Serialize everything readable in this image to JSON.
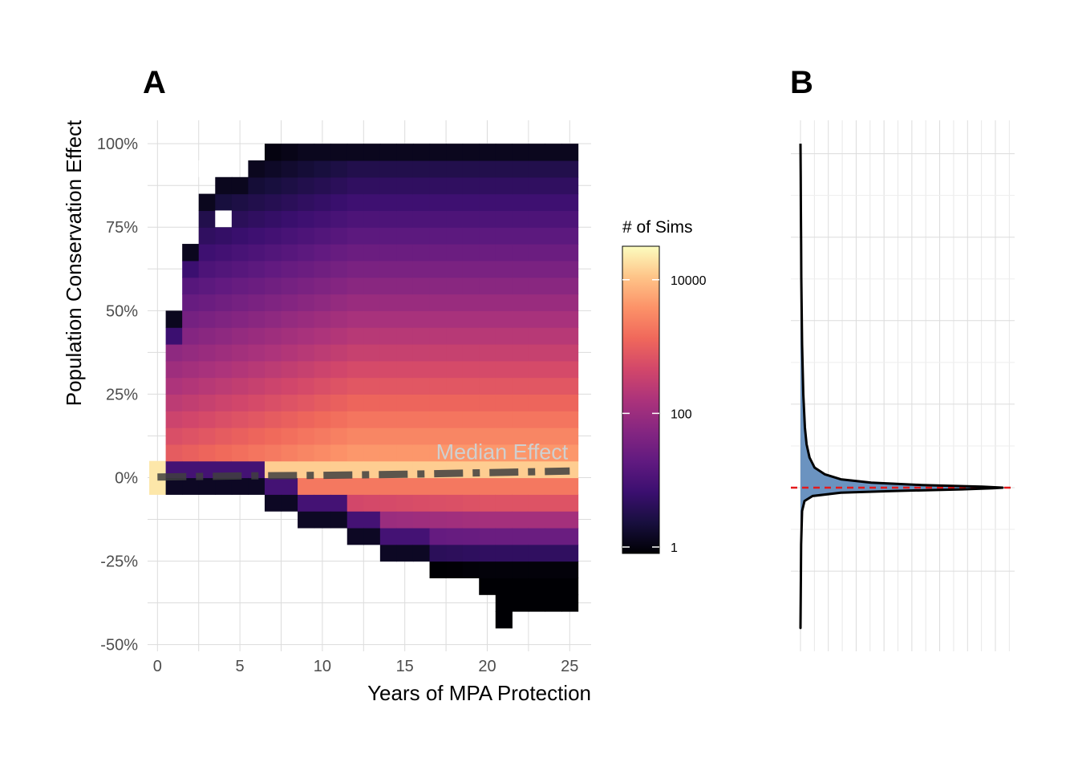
{
  "panels": {
    "a": {
      "label": "A"
    },
    "b": {
      "label": "B"
    }
  },
  "chart_data": [
    {
      "type": "heatmap",
      "panel": "A",
      "xlabel": "Years of MPA Protection",
      "ylabel": "Population Conservation Effect",
      "x_ticks": [
        0,
        5,
        10,
        15,
        20,
        25
      ],
      "x_tick_labels": [
        "0",
        "5",
        "10",
        "15",
        "20",
        "25"
      ],
      "y_ticks": [
        -0.5,
        -0.25,
        0,
        0.25,
        0.5,
        0.75,
        1.0
      ],
      "y_tick_labels": [
        "-50%",
        "-25%",
        "0%",
        "25%",
        "50%",
        "75%",
        "100%"
      ],
      "xlim": [
        -0.6,
        26.3
      ],
      "ylim": [
        -0.52,
        1.07
      ],
      "bin": {
        "x_width": 1,
        "y_height": 0.05
      },
      "annotation": "Median Effect",
      "median_line": {
        "style": "dashed",
        "color": "#404040",
        "points": [
          [
            0,
            0.002
          ],
          [
            5,
            0.005
          ],
          [
            10,
            0.007
          ],
          [
            15,
            0.01
          ],
          [
            20,
            0.015
          ],
          [
            25,
            0.02
          ]
        ]
      },
      "legend": {
        "title": "# of Sims",
        "scale": "log10",
        "placement": "right",
        "range": [
          1,
          30000
        ],
        "ticks": [
          1,
          100,
          10000
        ],
        "tick_labels": [
          "1",
          "100",
          "10000"
        ],
        "palette": "magma"
      },
      "column_extents": [
        {
          "x": 0,
          "ymin": -0.05,
          "ymax": 0.05
        },
        {
          "x": 1,
          "ymin": -0.05,
          "ymax": 0.5
        },
        {
          "x": 2,
          "ymin": -0.05,
          "ymax": 0.7
        },
        {
          "x": 3,
          "ymin": -0.05,
          "ymax": 0.85
        },
        {
          "x": 4,
          "ymin": -0.05,
          "ymax": 0.9
        },
        {
          "x": 5,
          "ymin": -0.05,
          "ymax": 0.9
        },
        {
          "x": 6,
          "ymin": -0.05,
          "ymax": 0.95
        },
        {
          "x": 7,
          "ymin": -0.1,
          "ymax": 1.0
        },
        {
          "x": 8,
          "ymin": -0.1,
          "ymax": 1.0
        },
        {
          "x": 9,
          "ymin": -0.15,
          "ymax": 1.0
        },
        {
          "x": 10,
          "ymin": -0.15,
          "ymax": 1.0
        },
        {
          "x": 11,
          "ymin": -0.15,
          "ymax": 1.0
        },
        {
          "x": 12,
          "ymin": -0.2,
          "ymax": 1.0
        },
        {
          "x": 13,
          "ymin": -0.2,
          "ymax": 1.0
        },
        {
          "x": 14,
          "ymin": -0.25,
          "ymax": 1.0
        },
        {
          "x": 15,
          "ymin": -0.25,
          "ymax": 1.0
        },
        {
          "x": 16,
          "ymin": -0.25,
          "ymax": 1.0
        },
        {
          "x": 17,
          "ymin": -0.3,
          "ymax": 1.0
        },
        {
          "x": 18,
          "ymin": -0.3,
          "ymax": 1.0
        },
        {
          "x": 19,
          "ymin": -0.3,
          "ymax": 1.0
        },
        {
          "x": 20,
          "ymin": -0.35,
          "ymax": 1.0
        },
        {
          "x": 21,
          "ymin": -0.45,
          "ymax": 1.0
        },
        {
          "x": 22,
          "ymin": -0.4,
          "ymax": 1.0
        },
        {
          "x": 23,
          "ymin": -0.4,
          "ymax": 1.0
        },
        {
          "x": 24,
          "ymin": -0.4,
          "ymax": 1.0
        },
        {
          "x": 25,
          "ymin": -0.4,
          "ymax": 1.0
        }
      ]
    },
    {
      "type": "area",
      "panel": "B",
      "description_of_values": "density of population conservation effect, shared y-axis with panel A",
      "ylim": [
        -0.52,
        1.07
      ],
      "x_ticks_count": 8,
      "fill_color": "#6b93c0",
      "line_color": "#000000",
      "median_line": {
        "y": -0.03,
        "color": "#e41a1c",
        "style": "dashed"
      },
      "density_points": [
        [
          -0.45,
          0.0
        ],
        [
          -0.3,
          0.002
        ],
        [
          -0.2,
          0.003
        ],
        [
          -0.1,
          0.008
        ],
        [
          -0.07,
          0.02
        ],
        [
          -0.055,
          0.06
        ],
        [
          -0.045,
          0.2
        ],
        [
          -0.04,
          0.45
        ],
        [
          -0.035,
          0.8
        ],
        [
          -0.032,
          0.95
        ],
        [
          -0.03,
          1.0
        ],
        [
          -0.027,
          0.9
        ],
        [
          -0.022,
          0.6
        ],
        [
          -0.015,
          0.35
        ],
        [
          -0.005,
          0.2
        ],
        [
          0.01,
          0.12
        ],
        [
          0.03,
          0.07
        ],
        [
          0.06,
          0.045
        ],
        [
          0.1,
          0.03
        ],
        [
          0.15,
          0.022
        ],
        [
          0.2,
          0.018
        ],
        [
          0.25,
          0.014
        ],
        [
          0.3,
          0.012
        ],
        [
          0.4,
          0.008
        ],
        [
          0.5,
          0.006
        ],
        [
          0.6,
          0.004
        ],
        [
          0.7,
          0.003
        ],
        [
          0.8,
          0.002
        ],
        [
          0.9,
          0.001
        ],
        [
          1.0,
          0.0
        ]
      ]
    }
  ]
}
